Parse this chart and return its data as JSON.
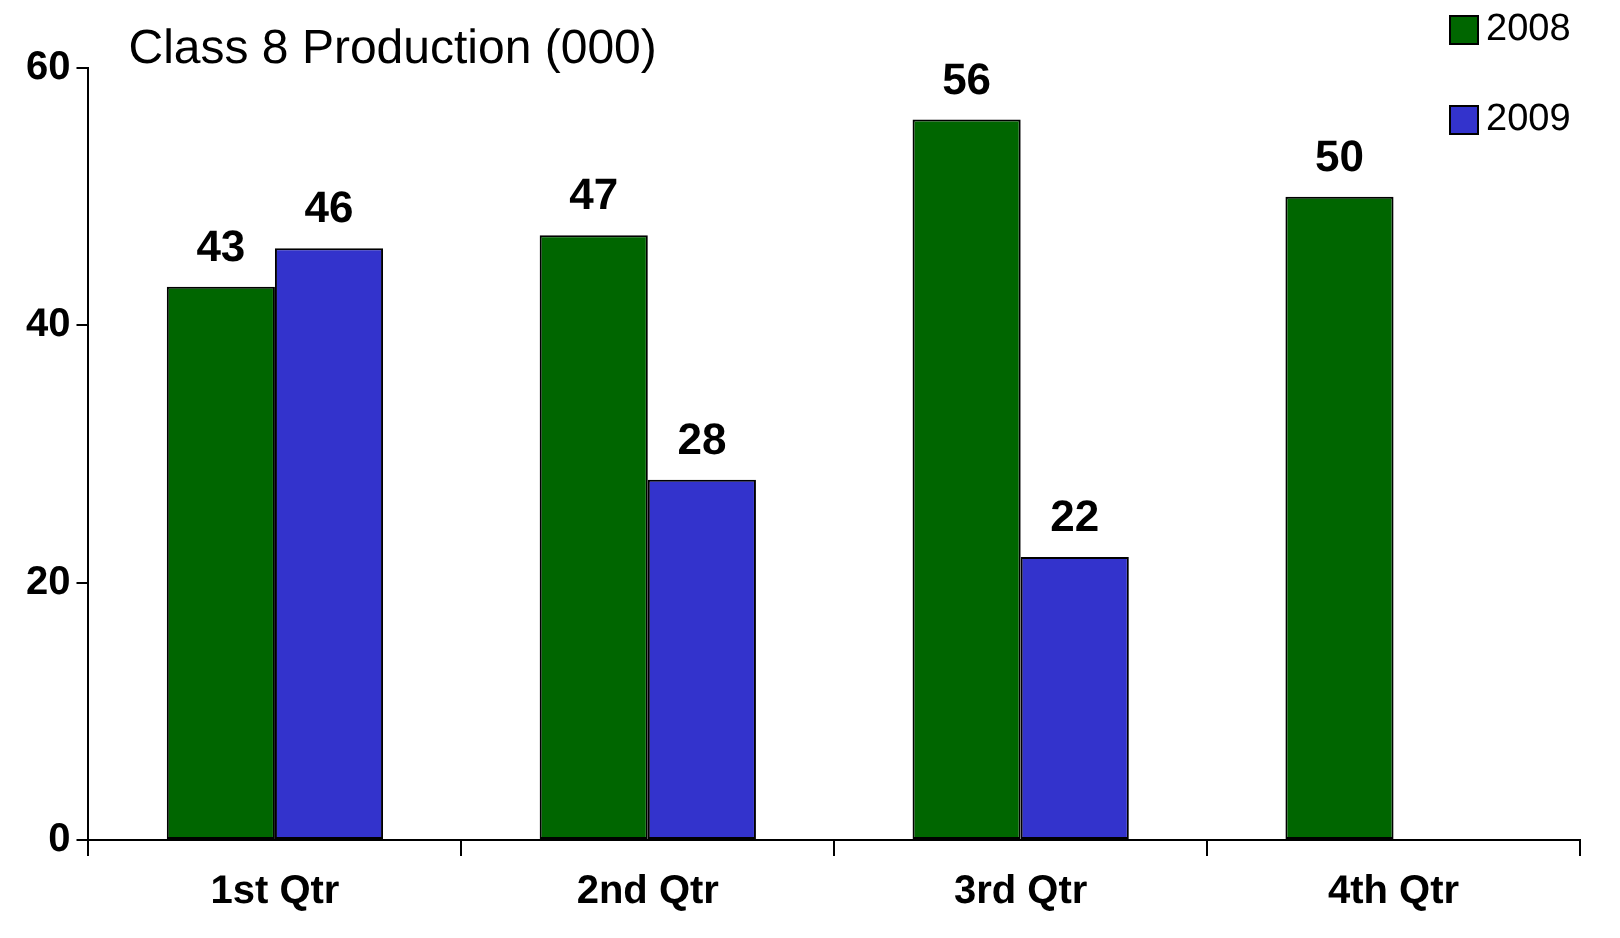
{
  "chart_data": {
    "type": "bar",
    "title": "Class 8 Production (000)",
    "categories": [
      "1st Qtr",
      "2nd Qtr",
      "3rd Qtr",
      "4th Qtr"
    ],
    "series": [
      {
        "name": "2008",
        "color": "#006600",
        "values": [
          43,
          47,
          56,
          50
        ]
      },
      {
        "name": "2009",
        "color": "#3333cc",
        "values": [
          46,
          28,
          22,
          null
        ]
      }
    ],
    "ylim": [
      0,
      60
    ],
    "yticks": [
      0,
      20,
      40,
      60
    ],
    "data_labels": true,
    "legend": "top right"
  }
}
